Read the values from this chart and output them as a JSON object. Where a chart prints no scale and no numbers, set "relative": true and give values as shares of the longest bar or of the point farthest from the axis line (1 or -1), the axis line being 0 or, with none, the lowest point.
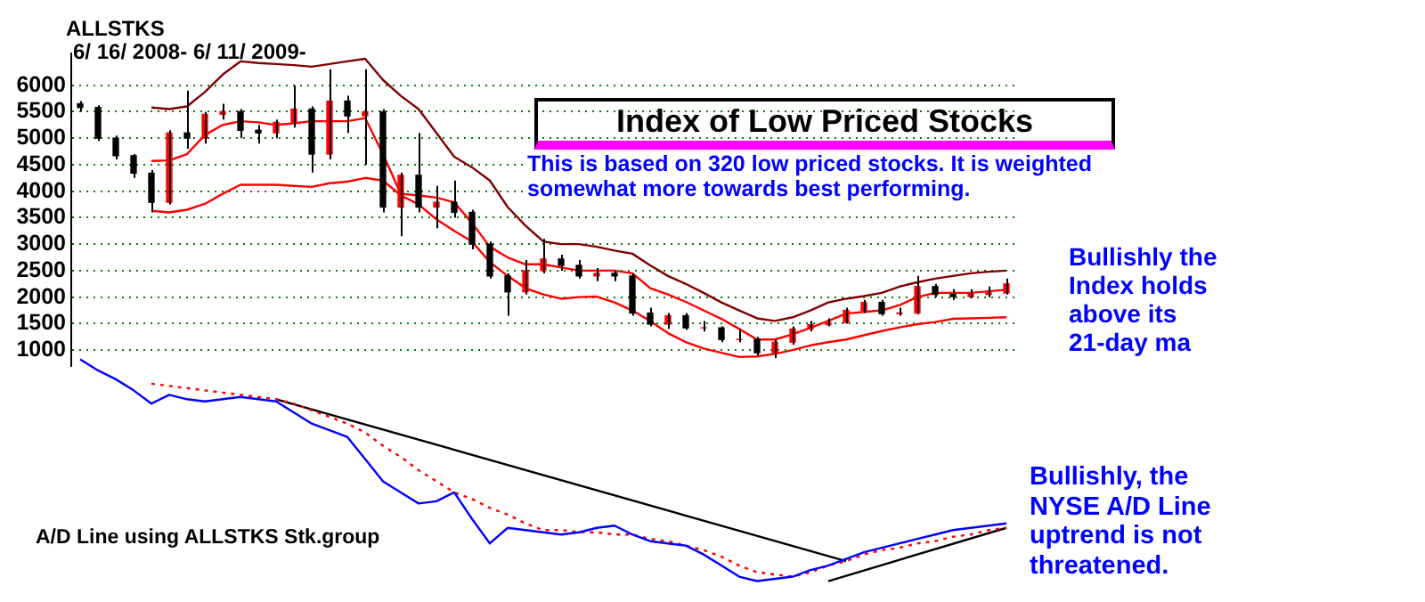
{
  "chart_data": [
    {
      "type": "candlestick",
      "title": "Index of Low Priced Stocks",
      "annotations": [
        "ALLSTKS",
        "6/ 16/ 2008- 6/ 11/ 2009-",
        "This is based on 320 low priced stocks.  It is weighted somewhat more towards best performing.",
        "Bullishly the Index holds above its 21-day ma"
      ],
      "categories": [
        null,
        null,
        null,
        null,
        null,
        null,
        null,
        null,
        null,
        null,
        null,
        null,
        null,
        null,
        null,
        null,
        null,
        null,
        null,
        null,
        null,
        null,
        null,
        null,
        null,
        null,
        null,
        null,
        null,
        null,
        null,
        null,
        null,
        null,
        null,
        null,
        null,
        null,
        null,
        null,
        null,
        null,
        null,
        null,
        null,
        null,
        null,
        null,
        null,
        null,
        null,
        null,
        null
      ],
      "ohlc": [
        [
          5650,
          5700,
          5500,
          5580
        ],
        [
          5580,
          5620,
          4950,
          5000
        ],
        [
          5000,
          5050,
          4600,
          4670
        ],
        [
          4670,
          4700,
          4250,
          4340
        ],
        [
          4340,
          4400,
          3600,
          3790
        ],
        [
          3790,
          5150,
          3750,
          5100
        ],
        [
          5100,
          5900,
          4800,
          5000
        ],
        [
          5000,
          5500,
          4900,
          5450
        ],
        [
          5450,
          5650,
          5350,
          5500
        ],
        [
          5500,
          5550,
          5000,
          5150
        ],
        [
          5150,
          5250,
          4900,
          5100
        ],
        [
          5100,
          5350,
          5000,
          5300
        ],
        [
          5300,
          6000,
          5200,
          5550
        ],
        [
          5550,
          5600,
          4350,
          4700
        ],
        [
          4700,
          6300,
          4600,
          5700
        ],
        [
          5700,
          5800,
          5100,
          5420
        ],
        [
          5420,
          6300,
          4500,
          5500
        ],
        [
          5500,
          5550,
          3600,
          3700
        ],
        [
          3700,
          4350,
          3150,
          4300
        ],
        [
          4300,
          5100,
          3600,
          3700
        ],
        [
          3700,
          4100,
          3300,
          3790
        ],
        [
          3790,
          4200,
          3500,
          3600
        ],
        [
          3600,
          3650,
          2900,
          3000
        ],
        [
          3000,
          3050,
          2350,
          2400
        ],
        [
          2400,
          2450,
          1650,
          2100
        ],
        [
          2100,
          2700,
          2050,
          2500
        ],
        [
          2500,
          3100,
          2450,
          2720
        ],
        [
          2720,
          2800,
          2500,
          2600
        ],
        [
          2600,
          2700,
          2350,
          2400
        ],
        [
          2400,
          2550,
          2300,
          2450
        ],
        [
          2450,
          2500,
          2300,
          2400
        ],
        [
          2400,
          2450,
          1650,
          1700
        ],
        [
          1700,
          1800,
          1450,
          1490
        ],
        [
          1490,
          1700,
          1400,
          1650
        ],
        [
          1650,
          1700,
          1380,
          1420
        ],
        [
          1420,
          1550,
          1350,
          1420
        ],
        [
          1420,
          1450,
          1150,
          1200
        ],
        [
          1200,
          1400,
          1150,
          1200
        ],
        [
          1200,
          1250,
          900,
          950
        ],
        [
          950,
          1200,
          850,
          1150
        ],
        [
          1150,
          1450,
          1100,
          1400
        ],
        [
          1400,
          1550,
          1350,
          1480
        ],
        [
          1480,
          1600,
          1450,
          1520
        ],
        [
          1520,
          1800,
          1500,
          1750
        ],
        [
          1750,
          1950,
          1700,
          1900
        ],
        [
          1900,
          1950,
          1650,
          1690
        ],
        [
          1690,
          1800,
          1650,
          1700
        ],
        [
          1700,
          2400,
          1680,
          2200
        ],
        [
          2200,
          2250,
          2000,
          2050
        ],
        [
          2050,
          2150,
          1950,
          2010
        ],
        [
          2010,
          2150,
          1980,
          2050
        ],
        [
          2050,
          2200,
          2000,
          2080
        ],
        [
          2080,
          2350,
          2050,
          2250
        ]
      ],
      "series": [
        {
          "type": "line",
          "color": "#800000",
          "values": [
            null,
            null,
            null,
            null,
            5580,
            5550,
            5600,
            5870,
            6200,
            6450,
            6420,
            6400,
            6380,
            6350,
            6400,
            6450,
            6500,
            6100,
            5800,
            5550,
            5100,
            4650,
            4450,
            4200,
            3700,
            3350,
            3050,
            3000,
            3000,
            2950,
            2880,
            2820,
            2600,
            2400,
            2250,
            2080,
            1900,
            1750,
            1600,
            1550,
            1620,
            1750,
            1900,
            1970,
            2020,
            2080,
            2200,
            2280,
            2350,
            2400,
            2450,
            2480,
            2500
          ]
        },
        {
          "type": "line",
          "color": "#ff0000",
          "values": [
            null,
            null,
            null,
            null,
            4570,
            4580,
            4700,
            5060,
            5250,
            5320,
            5300,
            5250,
            5280,
            5320,
            5320,
            5320,
            5380,
            4700,
            3950,
            3920,
            3880,
            3790,
            3400,
            2950,
            2750,
            2620,
            2620,
            2560,
            2500,
            2500,
            2500,
            2450,
            2170,
            2050,
            1910,
            1750,
            1590,
            1400,
            1200,
            1200,
            1300,
            1420,
            1550,
            1690,
            1720,
            1750,
            1850,
            2000,
            2080,
            2080,
            2080,
            2110,
            2140
          ]
        },
        {
          "type": "line",
          "color": "#ff0000",
          "values": [
            null,
            null,
            null,
            null,
            3630,
            3600,
            3650,
            3760,
            3950,
            4120,
            4120,
            4120,
            4100,
            4080,
            4150,
            4180,
            4250,
            4200,
            3920,
            3750,
            3470,
            3250,
            3050,
            2660,
            2400,
            2170,
            2050,
            1970,
            2000,
            2010,
            1900,
            1750,
            1550,
            1320,
            1150,
            1030,
            950,
            870,
            880,
            930,
            1000,
            1090,
            1150,
            1200,
            1280,
            1360,
            1430,
            1490,
            1530,
            1590,
            1600,
            1610,
            1620
          ]
        }
      ],
      "ylim": [
        700,
        6600
      ],
      "yticks": [
        1000,
        1500,
        2000,
        2500,
        3000,
        3500,
        4000,
        4500,
        5000,
        5500,
        6000
      ],
      "grid": "y",
      "tick_labels": "y",
      "legend": false
    },
    {
      "type": "line",
      "relative": true,
      "tick_labels": false,
      "legend": false,
      "annotations": [
        "A/D Line using ALLSTKS Stk.group",
        "Bullishly, the NYSE A/D Line uptrend is not threatened."
      ],
      "categories": [
        null,
        null,
        null,
        null,
        null,
        null,
        null,
        null,
        null,
        null,
        null,
        null,
        null,
        null,
        null,
        null,
        null,
        null,
        null,
        null,
        null,
        null,
        null,
        null,
        null,
        null,
        null,
        null,
        null,
        null,
        null,
        null,
        null,
        null,
        null,
        null,
        null,
        null,
        null,
        null,
        null,
        null,
        null,
        null,
        null,
        null,
        null,
        null,
        null,
        null,
        null,
        null,
        null
      ],
      "series": [
        {
          "color": "#0000ff",
          "values": [
            1,
            0.95,
            0.91,
            0.86,
            0.8,
            0.84,
            0.82,
            0.81,
            0.82,
            0.83,
            0.82,
            0.81,
            0.76,
            0.71,
            0.68,
            0.65,
            0.55,
            0.45,
            0.4,
            0.35,
            0.36,
            0.4,
            0.28,
            0.17,
            0.24,
            0.23,
            0.22,
            0.21,
            0.22,
            0.24,
            0.25,
            0.21,
            0.18,
            0.17,
            0.16,
            0.12,
            0.07,
            0.02,
            0,
            0.01,
            0.02,
            0.05,
            0.07,
            0.1,
            0.13,
            0.15,
            0.17,
            0.19,
            0.21,
            0.23,
            0.24,
            0.25,
            0.26
          ]
        },
        {
          "color": "#ff0000",
          "line_style": "dotted",
          "values": [
            null,
            null,
            null,
            null,
            0.89,
            0.88,
            0.87,
            0.86,
            0.85,
            0.84,
            0.83,
            0.82,
            0.8,
            0.77,
            0.74,
            0.71,
            0.67,
            0.61,
            0.56,
            0.5,
            0.45,
            0.4,
            0.37,
            0.33,
            0.3,
            0.26,
            0.23,
            0.23,
            0.22,
            0.22,
            0.21,
            0.21,
            0.19,
            0.18,
            0.16,
            0.14,
            0.11,
            0.07,
            0.04,
            0.03,
            0.02,
            0.04,
            0.07,
            0.09,
            0.12,
            0.14,
            0.15,
            0.17,
            0.18,
            0.2,
            0.21,
            0.23,
            0.24
          ]
        },
        {
          "color": "#000000",
          "values": [
            null,
            null,
            null,
            null,
            null,
            null,
            null,
            null,
            null,
            null,
            null,
            0.82,
            null,
            null,
            null,
            null,
            null,
            null,
            null,
            null,
            null,
            null,
            null,
            null,
            null,
            null,
            null,
            null,
            null,
            null,
            null,
            null,
            null,
            null,
            null,
            null,
            null,
            null,
            null,
            null,
            null,
            null,
            null,
            0.09,
            null,
            null,
            null,
            null,
            null,
            null,
            null,
            null,
            null
          ]
        },
        {
          "color": "#000000",
          "values": [
            null,
            null,
            null,
            null,
            null,
            null,
            null,
            null,
            null,
            null,
            null,
            null,
            null,
            null,
            null,
            null,
            null,
            null,
            null,
            null,
            null,
            null,
            null,
            null,
            null,
            null,
            null,
            null,
            null,
            null,
            null,
            null,
            null,
            null,
            null,
            null,
            null,
            null,
            null,
            null,
            null,
            null,
            0,
            null,
            null,
            null,
            null,
            null,
            null,
            null,
            null,
            null,
            0.24
          ]
        }
      ]
    }
  ]
}
